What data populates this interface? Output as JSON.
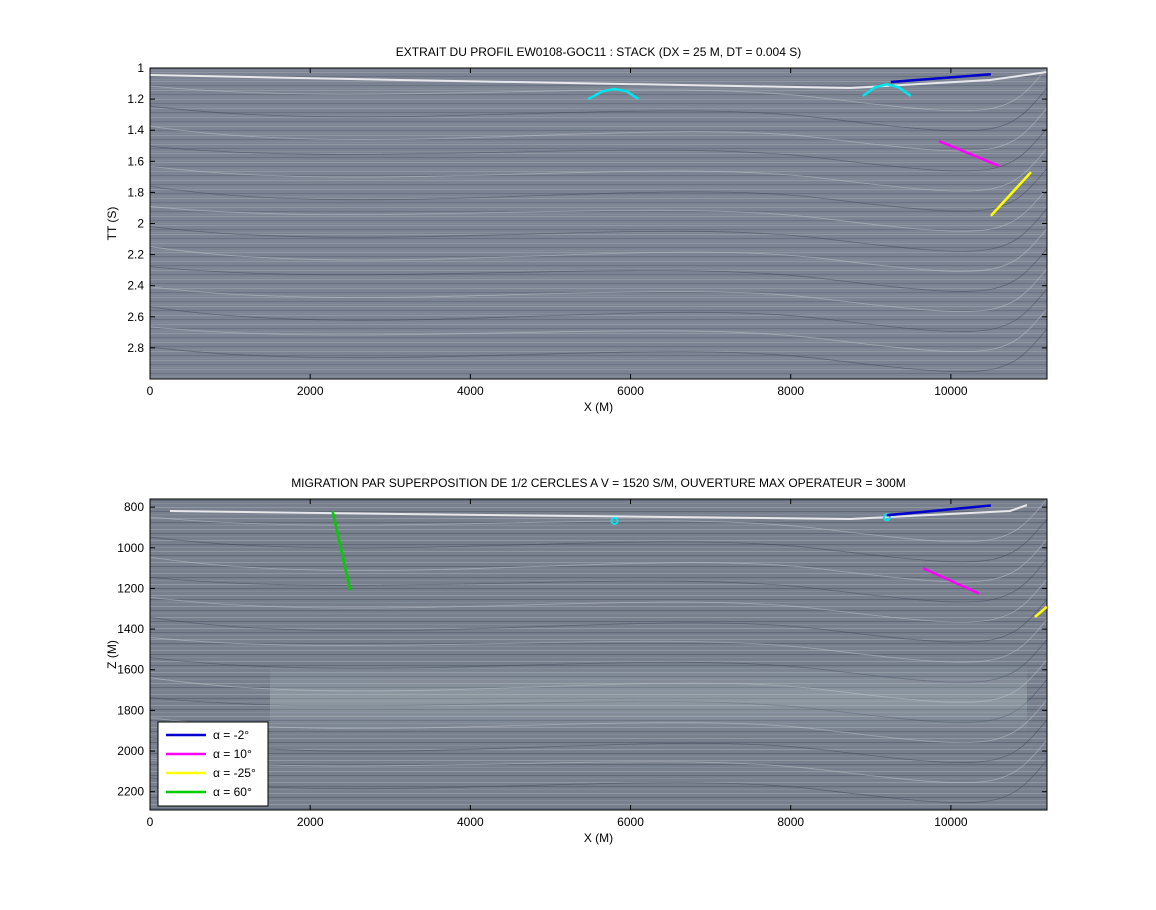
{
  "chart_data": [
    {
      "type": "heatmap",
      "title": "EXTRAIT DU PROFIL EW0108-GOC11 : STACK (DX = 25 M, DT = 0.004 S)",
      "xlabel": "X (M)",
      "ylabel": "TT (S)",
      "xlim": [
        0,
        11200
      ],
      "ylim": [
        1.0,
        3.0
      ],
      "y_reversed": true,
      "xticks": [
        0,
        2000,
        4000,
        6000,
        8000,
        10000
      ],
      "yticks": [
        1,
        1.2,
        1.4,
        1.6,
        1.8,
        2,
        2.2,
        2.4,
        2.6,
        2.8
      ],
      "image": "seismic stack section (grayscale)",
      "overlays": [
        {
          "type": "arc",
          "color": "#00e5ee",
          "points": [
            [
              5470,
              1.2
            ],
            [
              5650,
              1.15
            ],
            [
              5800,
              1.135
            ],
            [
              5950,
              1.15
            ],
            [
              6100,
              1.2
            ]
          ]
        },
        {
          "type": "arc",
          "color": "#00e5ee",
          "points": [
            [
              8900,
              1.18
            ],
            [
              9050,
              1.125
            ],
            [
              9200,
              1.105
            ],
            [
              9350,
              1.125
            ],
            [
              9500,
              1.18
            ]
          ]
        },
        {
          "type": "line",
          "color": "#0000cc",
          "points": [
            [
              9250,
              1.09
            ],
            [
              10500,
              1.04
            ]
          ]
        },
        {
          "type": "line",
          "color": "#ff00ff",
          "points": [
            [
              9850,
              1.47
            ],
            [
              10600,
              1.63
            ]
          ]
        },
        {
          "type": "line",
          "color": "#ffff00",
          "points": [
            [
              10500,
              1.95
            ],
            [
              11000,
              1.67
            ]
          ]
        }
      ]
    },
    {
      "type": "heatmap",
      "title": "MIGRATION PAR SUPERPOSITION DE 1/2 CERCLES A V = 1520 S/M, OUVERTURE MAX OPERATEUR = 300M",
      "xlabel": "X (M)",
      "ylabel": "Z (M)",
      "xlim": [
        0,
        11200
      ],
      "ylim": [
        760,
        2290
      ],
      "y_reversed": true,
      "xticks": [
        0,
        2000,
        4000,
        6000,
        8000,
        10000
      ],
      "yticks": [
        800,
        1000,
        1200,
        1400,
        1600,
        1800,
        2000,
        2200
      ],
      "image": "migrated depth section (grayscale)",
      "legend": {
        "position": "bottom-left",
        "entries": [
          {
            "label": "α = -2°",
            "color": "#0000cc"
          },
          {
            "label": "α = 10°",
            "color": "#ff00ff"
          },
          {
            "label": "α = -25°",
            "color": "#ffff00"
          },
          {
            "label": "α = 60°",
            "color": "#00cc00"
          }
        ]
      },
      "overlays": [
        {
          "type": "circle",
          "color": "#00e5ee",
          "center": [
            5800,
            868
          ],
          "radius": 35
        },
        {
          "type": "circle",
          "color": "#00e5ee",
          "center": [
            9200,
            850
          ],
          "radius": 28
        },
        {
          "type": "line",
          "color": "#0000cc",
          "points": [
            [
              9200,
              840
            ],
            [
              10500,
              792
            ]
          ]
        },
        {
          "type": "line",
          "color": "#ff00ff",
          "points": [
            [
              9650,
              1100
            ],
            [
              10350,
              1225
            ]
          ]
        },
        {
          "type": "line",
          "color": "#ffff00",
          "points": [
            [
              11050,
              1340
            ],
            [
              11200,
              1290
            ]
          ]
        },
        {
          "type": "line",
          "color": "#00cc00",
          "points": [
            [
              2280,
              820
            ],
            [
              2500,
              1210
            ]
          ]
        }
      ]
    }
  ]
}
